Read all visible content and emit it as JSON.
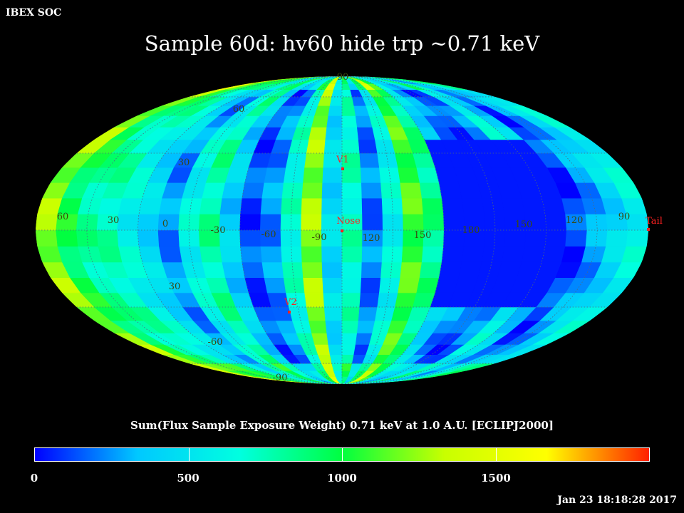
{
  "header": {
    "org_label": "IBEX SOC"
  },
  "title": "Sample 60d: hv60 hide trp ~0.71 keV",
  "map": {
    "projection": "mollweide",
    "coordinate_frame": "ECLIPJ2000",
    "grid": "dotted",
    "lon_labels": [
      "60",
      "30",
      "0",
      "-30",
      "-60",
      "-90",
      "120",
      "150",
      "180",
      "150",
      "120",
      "90"
    ],
    "lat_labels": [
      "90",
      "60",
      "30",
      "30",
      "-60",
      "-90"
    ],
    "colormap": [
      "#0000ff",
      "#00c8ff",
      "#00ffe0",
      "#00ff40",
      "#c8ff00",
      "#ffff00",
      "#ff2000"
    ],
    "markers": [
      {
        "label": "V1",
        "color": "#ff2020"
      },
      {
        "label": "Nose",
        "color": "#ff2020"
      },
      {
        "label": "V2",
        "color": "#ff2020"
      },
      {
        "label": "Tail",
        "color": "#ff2020"
      }
    ]
  },
  "colorbar": {
    "title": "Sum(Flux Sample Exposure Weight)  0.71 keV at 1.0 A.U. [ECLIPJ2000]",
    "range": [
      0,
      2000
    ],
    "tick_values": [
      0,
      500,
      1000,
      1500
    ],
    "tick_labels": [
      "0",
      "500",
      "1000",
      "1500"
    ]
  },
  "timestamp": "Jan 23 18:18:28 2017"
}
